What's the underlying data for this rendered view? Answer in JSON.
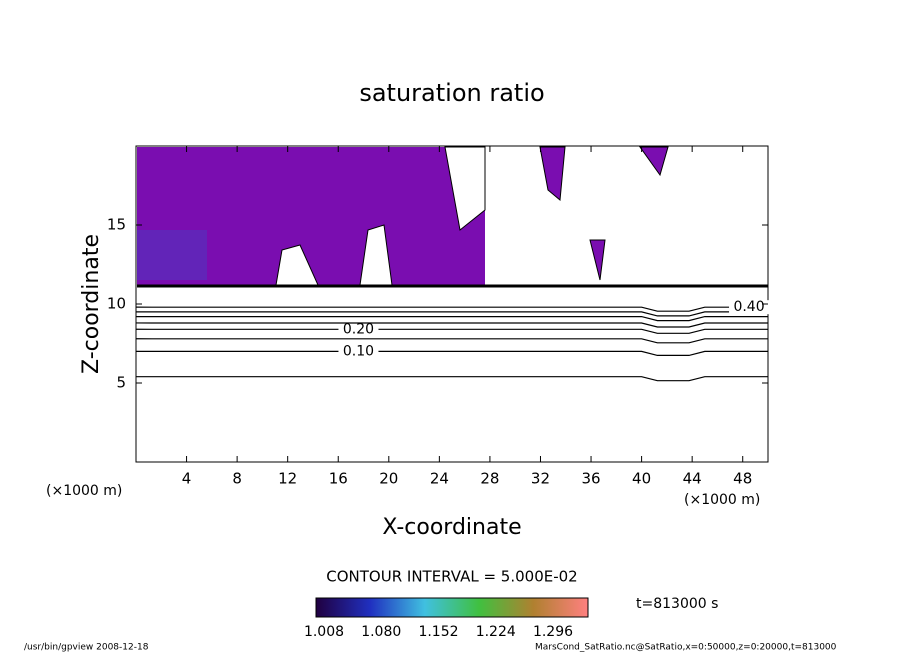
{
  "chart_data": {
    "type": "contour",
    "title": "saturation ratio",
    "x_label": "X-coordinate",
    "y_label": "Z-coordinate",
    "x_unit": "(×1000 m)",
    "xlim": [
      0,
      50
    ],
    "ylim": [
      0,
      20
    ],
    "xticks": [
      4,
      8,
      12,
      16,
      20,
      24,
      28,
      32,
      36,
      40,
      44,
      48
    ],
    "yticks": [
      5,
      10,
      15
    ],
    "fill_color": "#7a0db0",
    "contours": [
      {
        "value": 0.05,
        "z": 5.4
      },
      {
        "value": 0.1,
        "label": "0.10",
        "z": 7.0
      },
      {
        "value": 0.15,
        "z": 7.8
      },
      {
        "value": 0.2,
        "label": "0.20",
        "z": 8.4
      },
      {
        "value": 0.25,
        "z": 8.8
      },
      {
        "value": 0.3,
        "z": 9.2
      },
      {
        "value": 0.35,
        "z": 9.5
      },
      {
        "value": 0.4,
        "label": "0.40",
        "z": 9.8
      }
    ],
    "contour_interval": "CONTOUR INTERVAL = 5.000E-02",
    "time": "t=813000 s",
    "colorbar_ticks": [
      1.008,
      {
        "value": 1.08,
        "label": "1.080"
      },
      1.152,
      1.224,
      1.296
    ],
    "footer_left": "/usr/bin/gpview   2008-12-18",
    "footer_right": "MarsCond_SatRatio.nc@SatRatio,x=0:50000,z=0:20000,t=813000"
  }
}
